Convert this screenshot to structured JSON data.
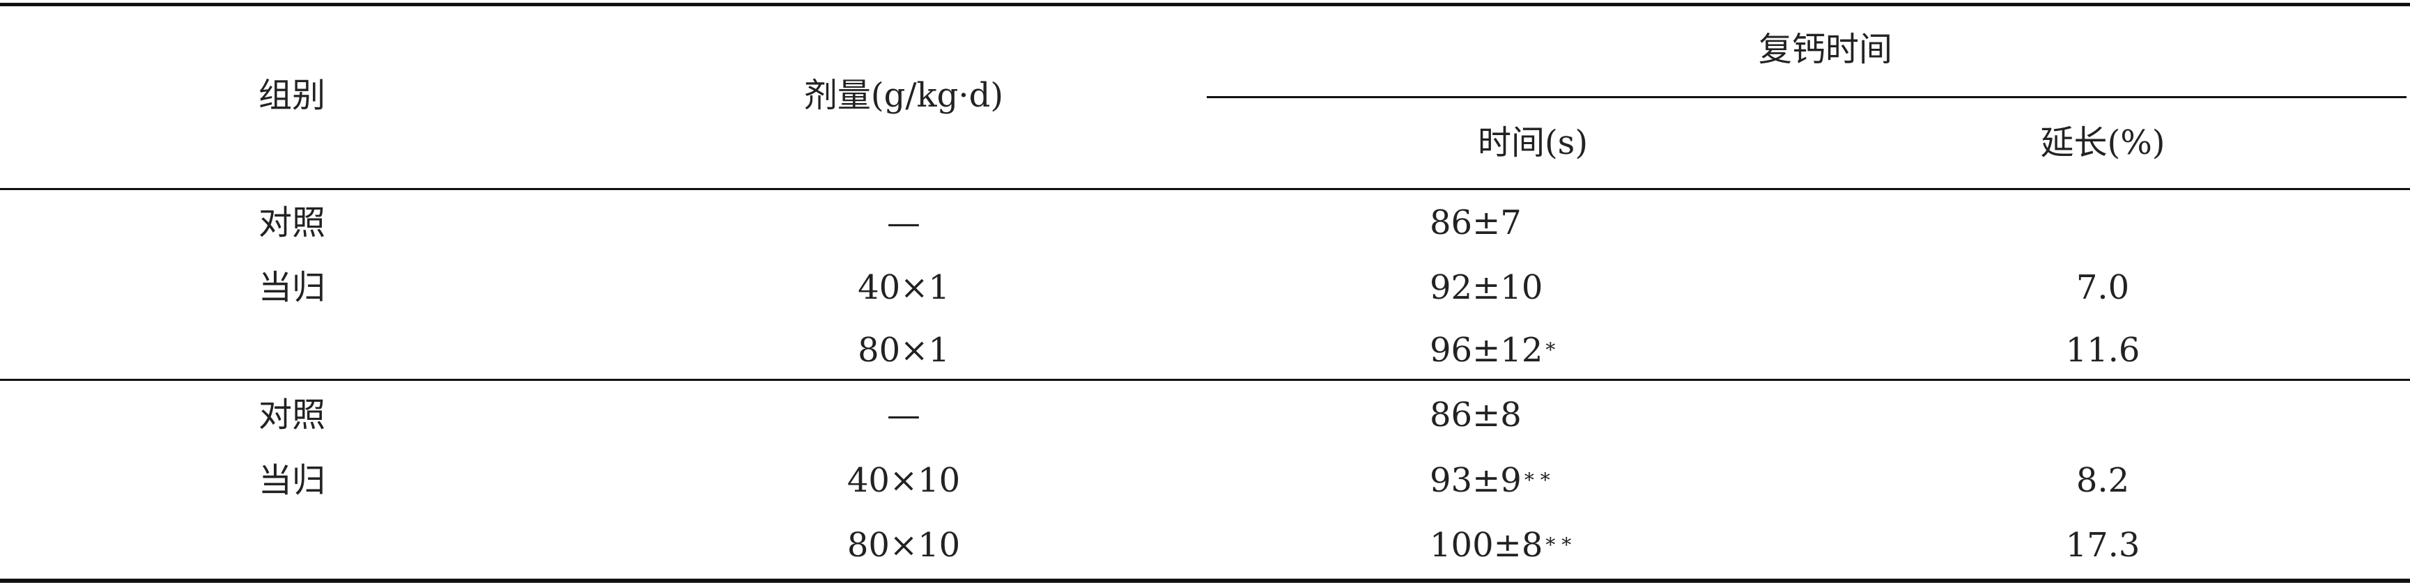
{
  "header": {
    "group": "组别",
    "dose": "剂量(g/kg·d)",
    "clotting_time": "复钙时间",
    "time": "时间(s)",
    "prolong": "延长(%)"
  },
  "table": {
    "rows": [
      [
        "对照",
        "—",
        {
          "text": "86±7"
        },
        null
      ],
      [
        "当归",
        "40×1",
        {
          "text": "92±10"
        },
        "7.0"
      ],
      [
        null,
        "80×1",
        {
          "text": "96±12",
          "sup": "*"
        },
        "11.6"
      ],
      [
        "对照",
        "—",
        {
          "text": "86±8"
        },
        null
      ],
      [
        "当归",
        "40×10",
        {
          "text": "93±9",
          "sup": "* *"
        },
        "8.2"
      ],
      [
        null,
        "80×10",
        {
          "text": "100±8",
          "sup": "* *"
        },
        "17.3"
      ]
    ]
  }
}
